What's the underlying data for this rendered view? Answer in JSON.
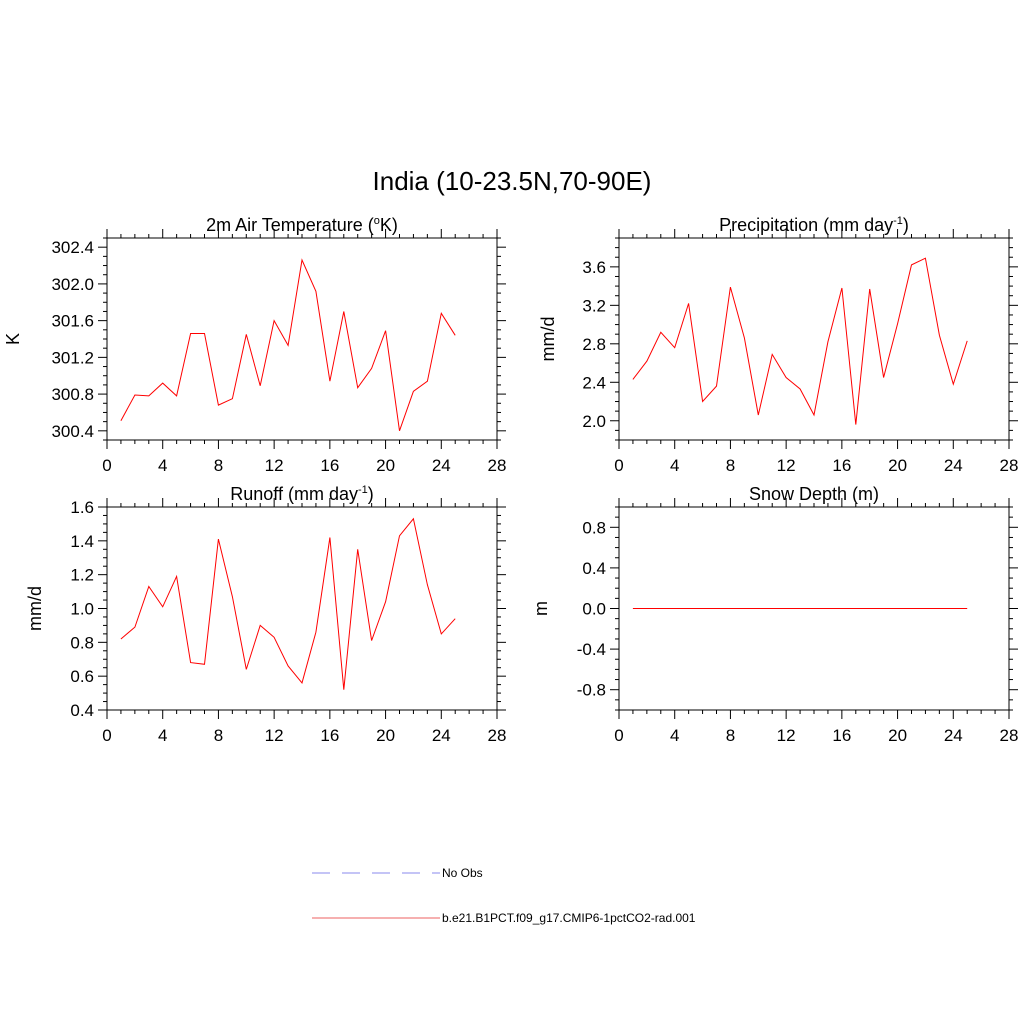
{
  "title": "India (10-23.5N,70-90E)",
  "chart_data": [
    {
      "type": "line",
      "title": "2m Air Temperature (",
      "title_sup": "o",
      "title_tail": "K)",
      "ylabel": "K",
      "xlim": [
        0,
        28
      ],
      "xticks": [
        0,
        4,
        8,
        12,
        16,
        20,
        24,
        28
      ],
      "ylim": [
        300.3,
        302.5
      ],
      "yticks": [
        300.4,
        300.8,
        301.2,
        301.6,
        302.0,
        302.4
      ],
      "ytick_labels": [
        "300.4",
        "300.8",
        "301.2",
        "301.6",
        "302.0",
        "302.4"
      ],
      "x": [
        1,
        2,
        3,
        4,
        5,
        6,
        7,
        8,
        9,
        10,
        11,
        12,
        13,
        14,
        15,
        16,
        17,
        18,
        19,
        20,
        21,
        22,
        23,
        24,
        25
      ],
      "series": [
        {
          "name": "b.e21.B1PCT.f09_g17.CMIP6-1pctCO2-rad.001",
          "values": [
            300.51,
            300.79,
            300.78,
            300.92,
            300.78,
            301.46,
            301.46,
            300.68,
            300.75,
            301.45,
            300.89,
            301.6,
            301.33,
            302.26,
            301.92,
            300.94,
            301.7,
            300.87,
            301.08,
            301.49,
            300.4,
            300.83,
            300.94,
            301.68,
            301.44
          ]
        }
      ]
    },
    {
      "type": "line",
      "title": "Precipitation (mm day",
      "title_sup": "-1",
      "title_tail": ")",
      "ylabel": "mm/d",
      "xlim": [
        0,
        28
      ],
      "xticks": [
        0,
        4,
        8,
        12,
        16,
        20,
        24,
        28
      ],
      "ylim": [
        1.8,
        3.9
      ],
      "yticks": [
        2.0,
        2.4,
        2.8,
        3.2,
        3.6
      ],
      "ytick_labels": [
        "2.0",
        "2.4",
        "2.8",
        "3.2",
        "3.6"
      ],
      "x": [
        1,
        2,
        3,
        4,
        5,
        6,
        7,
        8,
        9,
        10,
        11,
        12,
        13,
        14,
        15,
        16,
        17,
        18,
        19,
        20,
        21,
        22,
        23,
        24,
        25
      ],
      "series": [
        {
          "name": "b.e21.B1PCT.f09_g17.CMIP6-1pctCO2-rad.001",
          "values": [
            2.43,
            2.62,
            2.92,
            2.76,
            3.22,
            2.2,
            2.36,
            3.39,
            2.86,
            2.06,
            2.69,
            2.45,
            2.33,
            2.06,
            2.82,
            3.38,
            1.96,
            3.37,
            2.45,
            3.01,
            3.62,
            3.69,
            2.89,
            2.38,
            2.83
          ]
        }
      ]
    },
    {
      "type": "line",
      "title": "Runoff (mm day",
      "title_sup": "-1",
      "title_tail": ")",
      "ylabel": "mm/d",
      "xlim": [
        0,
        28
      ],
      "xticks": [
        0,
        4,
        8,
        12,
        16,
        20,
        24,
        28
      ],
      "ylim": [
        0.4,
        1.6
      ],
      "yticks": [
        0.4,
        0.6,
        0.8,
        1.0,
        1.2,
        1.4,
        1.6
      ],
      "ytick_labels": [
        "0.4",
        "0.6",
        "0.8",
        "1.0",
        "1.2",
        "1.4",
        "1.6"
      ],
      "x": [
        1,
        2,
        3,
        4,
        5,
        6,
        7,
        8,
        9,
        10,
        11,
        12,
        13,
        14,
        15,
        16,
        17,
        18,
        19,
        20,
        21,
        22,
        23,
        24,
        25
      ],
      "series": [
        {
          "name": "b.e21.B1PCT.f09_g17.CMIP6-1pctCO2-rad.001",
          "values": [
            0.82,
            0.89,
            1.13,
            1.01,
            1.19,
            0.68,
            0.67,
            1.41,
            1.07,
            0.64,
            0.9,
            0.83,
            0.66,
            0.56,
            0.86,
            1.42,
            0.52,
            1.35,
            0.81,
            1.04,
            1.43,
            1.53,
            1.14,
            0.85,
            0.94
          ]
        }
      ]
    },
    {
      "type": "line",
      "title": "Snow Depth (m)",
      "title_sup": "",
      "title_tail": "",
      "ylabel": "m",
      "xlim": [
        0,
        28
      ],
      "xticks": [
        0,
        4,
        8,
        12,
        16,
        20,
        24,
        28
      ],
      "ylim": [
        -1.0,
        1.0
      ],
      "yticks": [
        -0.8,
        -0.4,
        0.0,
        0.4,
        0.8
      ],
      "ytick_labels": [
        "-0.8",
        "-0.4",
        "0.0",
        "0.4",
        "0.8"
      ],
      "x": [
        1,
        2,
        3,
        4,
        5,
        6,
        7,
        8,
        9,
        10,
        11,
        12,
        13,
        14,
        15,
        16,
        17,
        18,
        19,
        20,
        21,
        22,
        23,
        24,
        25
      ],
      "series": [
        {
          "name": "b.e21.B1PCT.f09_g17.CMIP6-1pctCO2-rad.001",
          "values": [
            0,
            0,
            0,
            0,
            0,
            0,
            0,
            0,
            0,
            0,
            0,
            0,
            0,
            0,
            0,
            0,
            0,
            0,
            0,
            0,
            0,
            0,
            0,
            0,
            0
          ]
        }
      ]
    }
  ],
  "legend": {
    "entries": [
      {
        "label": "No Obs",
        "style": "dashed",
        "color": "#a0a0f0"
      },
      {
        "label": "b.e21.B1PCT.f09_g17.CMIP6-1pctCO2-rad.001",
        "style": "solid",
        "color": "#f08080"
      }
    ]
  },
  "colors": {
    "series": "#ff0000",
    "axis": "#000000"
  }
}
